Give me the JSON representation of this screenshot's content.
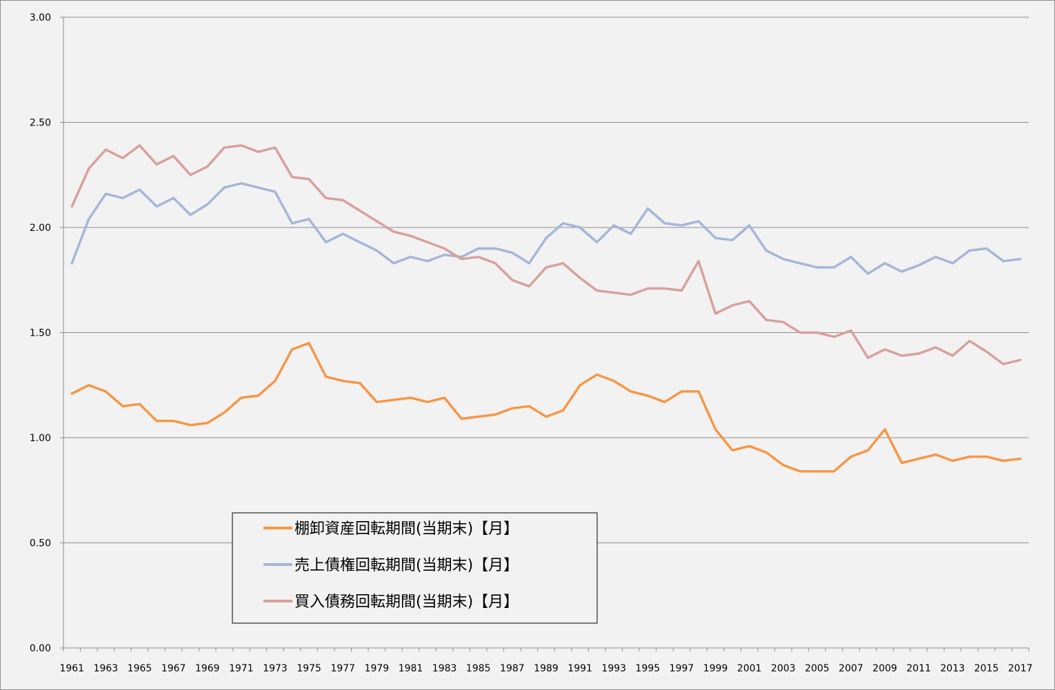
{
  "chart_data": {
    "type": "line",
    "title": "",
    "xlabel": "",
    "ylabel": "",
    "ylim": [
      0,
      3
    ],
    "y_ticks": [
      "0.00",
      "0.50",
      "1.00",
      "1.50",
      "2.00",
      "2.50",
      "3.00"
    ],
    "x_tick_labels": [
      "1961",
      "1963",
      "1965",
      "1967",
      "1969",
      "1971",
      "1973",
      "1975",
      "1977",
      "1979",
      "1981",
      "1983",
      "1985",
      "1987",
      "1989",
      "1991",
      "1993",
      "1995",
      "1997",
      "1999",
      "2001",
      "2003",
      "2005",
      "2007",
      "2009",
      "2011",
      "2013",
      "2015",
      "2017"
    ],
    "grid": "horizontal",
    "legend_position": "lower-left",
    "x": [
      1961,
      1962,
      1963,
      1964,
      1965,
      1966,
      1967,
      1968,
      1969,
      1970,
      1971,
      1972,
      1973,
      1974,
      1975,
      1976,
      1977,
      1978,
      1979,
      1980,
      1981,
      1982,
      1983,
      1984,
      1985,
      1986,
      1987,
      1988,
      1989,
      1990,
      1991,
      1992,
      1993,
      1994,
      1995,
      1996,
      1997,
      1998,
      1999,
      2000,
      2001,
      2002,
      2003,
      2004,
      2005,
      2006,
      2007,
      2008,
      2009,
      2010,
      2011,
      2012,
      2013,
      2014,
      2015,
      2016,
      2017
    ],
    "series": [
      {
        "name": "棚卸資産回転期間(当期末)【月】",
        "color": "#f79646",
        "values": [
          1.21,
          1.25,
          1.22,
          1.15,
          1.16,
          1.08,
          1.08,
          1.06,
          1.07,
          1.12,
          1.19,
          1.2,
          1.27,
          1.42,
          1.45,
          1.29,
          1.27,
          1.26,
          1.17,
          1.18,
          1.19,
          1.17,
          1.19,
          1.09,
          1.1,
          1.11,
          1.14,
          1.15,
          1.1,
          1.13,
          1.25,
          1.3,
          1.27,
          1.22,
          1.2,
          1.17,
          1.22,
          1.22,
          1.04,
          0.94,
          0.96,
          0.93,
          0.87,
          0.84,
          0.84,
          0.84,
          0.91,
          0.94,
          1.04,
          0.88,
          0.9,
          0.92,
          0.89,
          0.91,
          0.91,
          0.89,
          0.9
        ]
      },
      {
        "name": "売上債権回転期間(当期末)【月】",
        "color": "#a5b6d8",
        "values": [
          1.83,
          2.04,
          2.16,
          2.14,
          2.18,
          2.1,
          2.14,
          2.06,
          2.11,
          2.19,
          2.21,
          2.19,
          2.17,
          2.02,
          2.04,
          1.93,
          1.97,
          1.93,
          1.89,
          1.83,
          1.86,
          1.84,
          1.87,
          1.86,
          1.9,
          1.9,
          1.88,
          1.83,
          1.95,
          2.02,
          2.0,
          1.93,
          2.01,
          1.97,
          2.09,
          2.02,
          2.01,
          2.03,
          1.95,
          1.94,
          2.01,
          1.89,
          1.85,
          1.83,
          1.81,
          1.81,
          1.86,
          1.78,
          1.83,
          1.79,
          1.82,
          1.86,
          1.83,
          1.89,
          1.9,
          1.84,
          1.85
        ]
      },
      {
        "name": "買入債務回転期間(当期末)【月】",
        "color": "#d9a09c",
        "values": [
          2.1,
          2.28,
          2.37,
          2.33,
          2.39,
          2.3,
          2.34,
          2.25,
          2.29,
          2.38,
          2.39,
          2.36,
          2.38,
          2.24,
          2.23,
          2.14,
          2.13,
          2.08,
          2.03,
          1.98,
          1.96,
          1.93,
          1.9,
          1.85,
          1.86,
          1.83,
          1.75,
          1.72,
          1.81,
          1.83,
          1.76,
          1.7,
          1.69,
          1.68,
          1.71,
          1.71,
          1.7,
          1.84,
          1.59,
          1.63,
          1.65,
          1.56,
          1.55,
          1.5,
          1.5,
          1.48,
          1.51,
          1.38,
          1.42,
          1.39,
          1.4,
          1.43,
          1.39,
          1.46,
          1.41,
          1.35,
          1.37
        ]
      }
    ]
  }
}
